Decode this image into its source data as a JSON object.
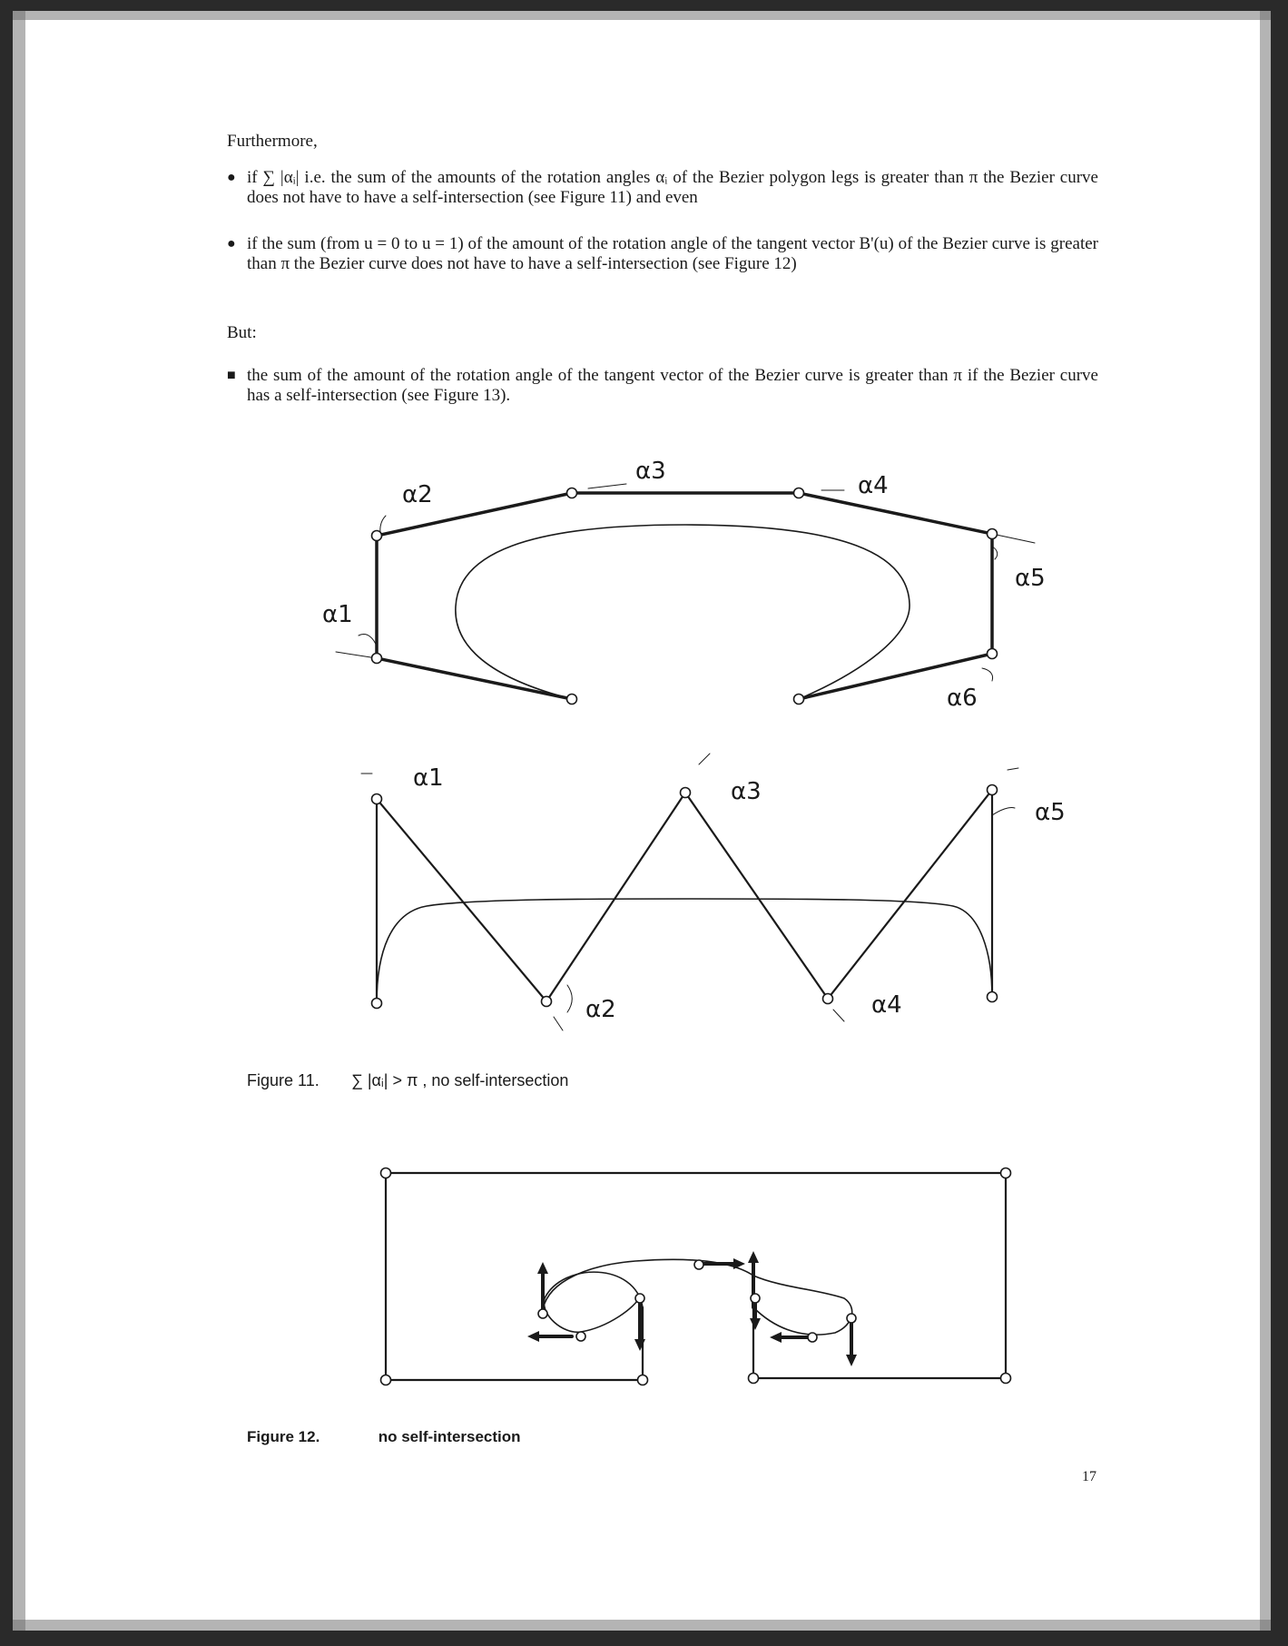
{
  "intro": "Furthermore,",
  "bullets": [
    {
      "marker": "●",
      "text": "if ∑ |αᵢ| i.e. the sum of the amounts of the rotation angles αᵢ of the Bezier polygon legs is greater than π the Bezier curve does not have to have a self-intersection (see Figure 11) and even"
    },
    {
      "marker": "●",
      "text": "if the sum (from u = 0 to u = 1) of the amount of the rotation angle of the tangent vector B'(u) of the Bezier curve is greater than π the Bezier curve does not have to have a self-intersection (see Figure 12)"
    }
  ],
  "but": "But:",
  "bullet_but": {
    "marker": "■",
    "text": "the sum of the amount of the rotation angle of the tangent vector of the Bezier curve is greater than π if the Bezier curve has a self-intersection (see Figure 13)."
  },
  "figure11": {
    "labels_top": [
      "α1",
      "α2",
      "α3",
      "α4",
      "α5",
      "α6"
    ],
    "labels_bottom": [
      "α1",
      "α2",
      "α3",
      "α4",
      "α5"
    ],
    "caption_number": "Figure 11.",
    "caption_text": "∑ |αᵢ| > π , no self-intersection"
  },
  "figure12": {
    "caption_number": "Figure 12.",
    "caption_text": "no self-intersection"
  },
  "page_number": "17"
}
